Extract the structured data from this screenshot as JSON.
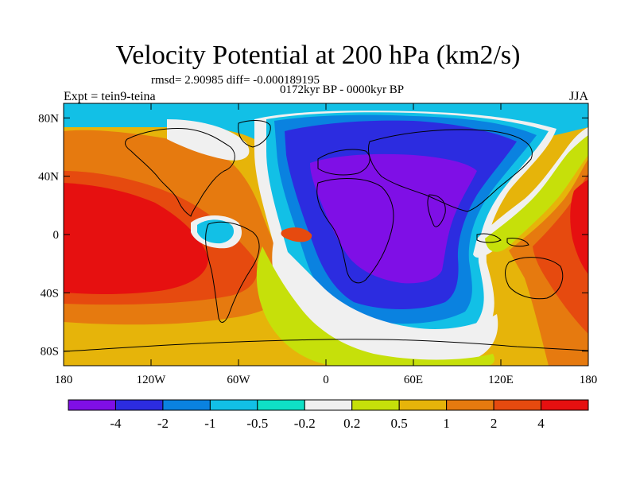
{
  "header": {
    "title": "Velocity Potential at 200 hPa (km2/s)",
    "stats": "rmsd= 2.90985 diff= -0.000189195",
    "subtitle": "0172kyr BP - 0000kyr BP",
    "experiment": "Expt = tein9-teina",
    "season": "JJA"
  },
  "axes": {
    "x_ticks": [
      "180",
      "120W",
      "60W",
      "0",
      "60E",
      "120E",
      "180"
    ],
    "y_ticks": [
      "80N",
      "40N",
      "0",
      "40S",
      "80S"
    ]
  },
  "colorbar": {
    "colors": [
      "#7f0fe6",
      "#2c2ce0",
      "#0a82e0",
      "#12c0e6",
      "#0fe0c6",
      "#f0f0f0",
      "#c6e00a",
      "#e6b40a",
      "#e67a0f",
      "#e64a0f",
      "#e61010"
    ],
    "labels": [
      "-4",
      "-2",
      "-1",
      "-0.5",
      "-0.2",
      "0.2",
      "0.5",
      "1",
      "2",
      "4"
    ]
  },
  "map_colors": {
    "land_outline": "#000000",
    "ocean_background": "#e6b40a"
  }
}
